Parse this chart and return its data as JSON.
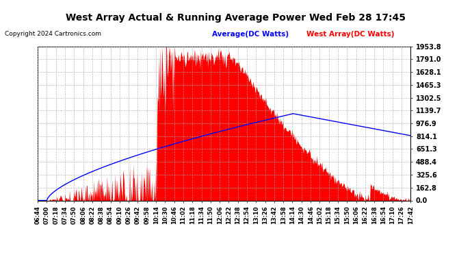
{
  "title": "West Array Actual & Running Average Power Wed Feb 28 17:45",
  "copyright": "Copyright 2024 Cartronics.com",
  "legend_avg": "Average(DC Watts)",
  "legend_west": "West Array(DC Watts)",
  "y_max": 1953.8,
  "y_min": 0.0,
  "y_ticks": [
    0.0,
    162.8,
    325.6,
    488.4,
    651.3,
    814.1,
    976.9,
    1139.7,
    1302.5,
    1465.3,
    1628.1,
    1791.0,
    1953.8
  ],
  "background_color": "#ffffff",
  "grid_color": "#aaaaaa",
  "area_color": "#ff0000",
  "avg_line_color": "#0000ff",
  "title_color": "#000000",
  "copyright_color": "#000000",
  "avg_legend_color": "#0000ff",
  "west_legend_color": "#ff0000",
  "x_tick_labels": [
    "06:44",
    "07:00",
    "07:18",
    "07:34",
    "07:50",
    "08:06",
    "08:22",
    "08:38",
    "08:54",
    "09:10",
    "09:26",
    "09:42",
    "09:58",
    "10:14",
    "10:30",
    "10:46",
    "11:02",
    "11:18",
    "11:34",
    "11:50",
    "12:06",
    "12:22",
    "12:38",
    "12:54",
    "13:10",
    "13:26",
    "13:42",
    "13:58",
    "14:14",
    "14:30",
    "14:46",
    "15:02",
    "15:18",
    "15:34",
    "15:50",
    "16:06",
    "16:22",
    "16:38",
    "16:54",
    "17:10",
    "17:26",
    "17:42"
  ],
  "figsize": [
    6.9,
    3.75
  ],
  "dpi": 100
}
